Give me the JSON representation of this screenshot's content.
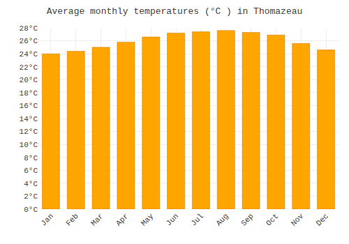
{
  "chart_data": {
    "type": "bar",
    "title": "Average monthly temperatures (°C ) in Thomazeau",
    "categories": [
      "Jan",
      "Feb",
      "Mar",
      "Apr",
      "May",
      "Jun",
      "Jul",
      "Aug",
      "Sep",
      "Oct",
      "Nov",
      "Dec"
    ],
    "values": [
      24.0,
      24.4,
      25.0,
      25.8,
      26.6,
      27.2,
      27.4,
      27.6,
      27.3,
      26.9,
      25.6,
      24.6
    ],
    "color": "#FFA500",
    "ylim": [
      0,
      28
    ],
    "yticks": [
      {
        "value": 0,
        "label": "0°C"
      },
      {
        "value": 2,
        "label": "2°C"
      },
      {
        "value": 4,
        "label": "4°C"
      },
      {
        "value": 6,
        "label": "6°C"
      },
      {
        "value": 8,
        "label": "8°C"
      },
      {
        "value": 10,
        "label": "10°C"
      },
      {
        "value": 12,
        "label": "12°C"
      },
      {
        "value": 14,
        "label": "14°C"
      },
      {
        "value": 16,
        "label": "16°C"
      },
      {
        "value": 18,
        "label": "18°C"
      },
      {
        "value": 20,
        "label": "20°C"
      },
      {
        "value": 22,
        "label": "22°C"
      },
      {
        "value": 24,
        "label": "24°C"
      },
      {
        "value": 26,
        "label": "26°C"
      },
      {
        "value": 28,
        "label": "28°C"
      }
    ],
    "grid": true
  }
}
